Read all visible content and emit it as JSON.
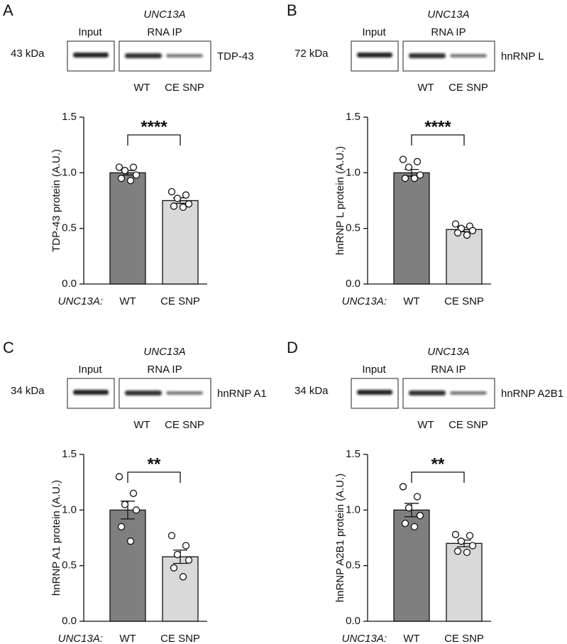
{
  "chart_data": [
    {
      "type": "bar",
      "panel": "A",
      "blot": {
        "marker": "43 kDa",
        "input_label": "Input",
        "gene": "UNC13A",
        "ip_label": "RNA IP",
        "protein": "TDP-43",
        "lanes": [
          "WT",
          "CE SNP"
        ]
      },
      "ylabel": "TDP-43 protein (A.U.)",
      "xlabel": "UNC13A:",
      "categories": [
        "WT",
        "CE SNP"
      ],
      "values": [
        1.0,
        0.75
      ],
      "errors": [
        0.02,
        0.025
      ],
      "points": [
        [
          1.05,
          1.05,
          1.02,
          0.98,
          0.95,
          0.93
        ],
        [
          0.83,
          0.8,
          0.77,
          0.72,
          0.7,
          0.69
        ]
      ],
      "colors": [
        "#7f7f7f",
        "#d9d9d9"
      ],
      "significance": "****",
      "ylim": [
        0,
        1.5
      ],
      "yticks": [
        {
          "value": 0,
          "label": "0.0"
        },
        {
          "value": 0.5,
          "label": "0.5"
        },
        {
          "value": 1,
          "label": "1.0"
        },
        {
          "value": 1.5,
          "label": "1.5"
        }
      ]
    },
    {
      "type": "bar",
      "panel": "B",
      "blot": {
        "marker": "72 kDa",
        "input_label": "Input",
        "gene": "UNC13A",
        "ip_label": "RNA IP",
        "protein": "hnRNP L",
        "lanes": [
          "WT",
          "CE SNP"
        ]
      },
      "ylabel": "hnRNP L protein (A.U.)",
      "xlabel": "UNC13A:",
      "categories": [
        "WT",
        "CE SNP"
      ],
      "values": [
        1.0,
        0.49
      ],
      "errors": [
        0.03,
        0.02
      ],
      "points": [
        [
          1.12,
          1.1,
          1.05,
          0.98,
          0.95,
          0.95
        ],
        [
          0.54,
          0.52,
          0.5,
          0.48,
          0.46,
          0.44
        ]
      ],
      "colors": [
        "#7f7f7f",
        "#d9d9d9"
      ],
      "significance": "****",
      "ylim": [
        0,
        1.5
      ],
      "yticks": [
        {
          "value": 0,
          "label": "0.0"
        },
        {
          "value": 0.5,
          "label": "0.5"
        },
        {
          "value": 1,
          "label": "1.0"
        },
        {
          "value": 1.5,
          "label": "1.5"
        }
      ]
    },
    {
      "type": "bar",
      "panel": "C",
      "blot": {
        "marker": "34 kDa",
        "input_label": "Input",
        "gene": "UNC13A",
        "ip_label": "RNA IP",
        "protein": "hnRNP A1",
        "lanes": [
          "WT",
          "CE SNP"
        ]
      },
      "ylabel": "hnRNP A1 protein (A.U.)",
      "xlabel": "UNC13A:",
      "categories": [
        "WT",
        "CE SNP"
      ],
      "values": [
        1.0,
        0.58
      ],
      "errors": [
        0.08,
        0.06
      ],
      "points": [
        [
          1.3,
          1.15,
          1.05,
          1.0,
          0.85,
          0.72
        ],
        [
          0.77,
          0.68,
          0.6,
          0.55,
          0.48,
          0.4
        ]
      ],
      "colors": [
        "#7f7f7f",
        "#d9d9d9"
      ],
      "significance": "**",
      "ylim": [
        0,
        1.5
      ],
      "yticks": [
        {
          "value": 0,
          "label": "0.0"
        },
        {
          "value": 0.5,
          "label": "0.5"
        },
        {
          "value": 1,
          "label": "1.0"
        },
        {
          "value": 1.5,
          "label": "1.5"
        }
      ]
    },
    {
      "type": "bar",
      "panel": "D",
      "blot": {
        "marker": "34 kDa",
        "input_label": "Input",
        "gene": "UNC13A",
        "ip_label": "RNA IP",
        "protein": "hnRNP A2B1",
        "lanes": [
          "WT",
          "CE SNP"
        ]
      },
      "ylabel": "hnRNP A2B1 protein (A.U.)",
      "xlabel": "UNC13A:",
      "categories": [
        "WT",
        "CE SNP"
      ],
      "values": [
        1.0,
        0.7
      ],
      "errors": [
        0.06,
        0.03
      ],
      "points": [
        [
          1.21,
          1.12,
          1.02,
          0.95,
          0.88,
          0.85
        ],
        [
          0.78,
          0.77,
          0.72,
          0.68,
          0.63,
          0.62
        ]
      ],
      "colors": [
        "#7f7f7f",
        "#d9d9d9"
      ],
      "significance": "**",
      "ylim": [
        0,
        1.5
      ],
      "yticks": [
        {
          "value": 0,
          "label": "0.0"
        },
        {
          "value": 0.5,
          "label": "0.5"
        },
        {
          "value": 1,
          "label": "1.0"
        },
        {
          "value": 1.5,
          "label": "1.5"
        }
      ]
    }
  ]
}
